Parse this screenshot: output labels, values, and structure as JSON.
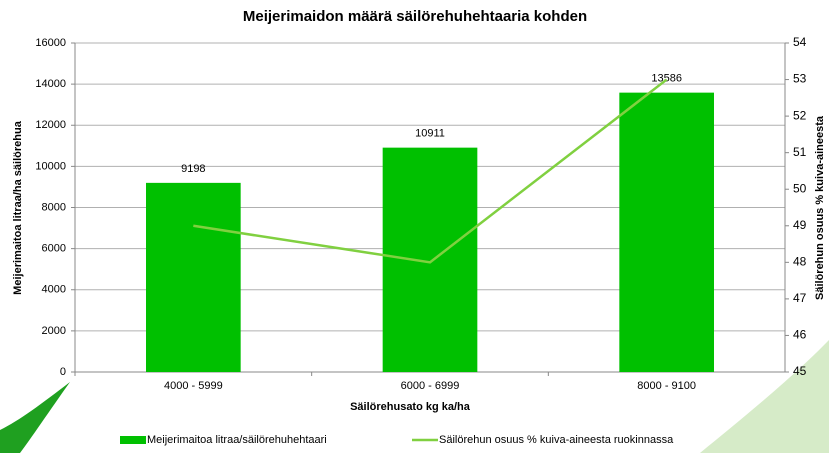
{
  "chart_data": {
    "type": "bar",
    "title": "Meijerimaidon määrä säilörehuhehtaaria kohden",
    "x_label": "Säilörehusato kg ka/ha",
    "y_label": "Meijerimaitoa litraa/ha säilörehua",
    "y2_label": "Säilörehun osuus % kuiva-aineesta",
    "categories": [
      "4000 - 5999",
      "6000 - 6999",
      "8000 - 9100"
    ],
    "series": [
      {
        "name": "Meijerimaitoa litraa/säilörehuhehtaari",
        "color": "#00c000",
        "values": [
          9198,
          10911,
          13586
        ],
        "show_values": true
      },
      {
        "name": "Säilörehun osuus % kuiva-aineesta ruokinnassa",
        "color": "#80d040",
        "type": "line",
        "axis": "y2",
        "values": [
          49,
          48,
          53
        ]
      }
    ],
    "ylim": [
      0,
      16000
    ],
    "yticks": [
      0,
      2000,
      4000,
      6000,
      8000,
      10000,
      12000,
      14000,
      16000
    ],
    "y2lim": [
      45,
      54
    ],
    "y2ticks": [
      45,
      46,
      47,
      48,
      49,
      50,
      51,
      52,
      53,
      54
    ],
    "grid": true,
    "legend": "bottom"
  }
}
